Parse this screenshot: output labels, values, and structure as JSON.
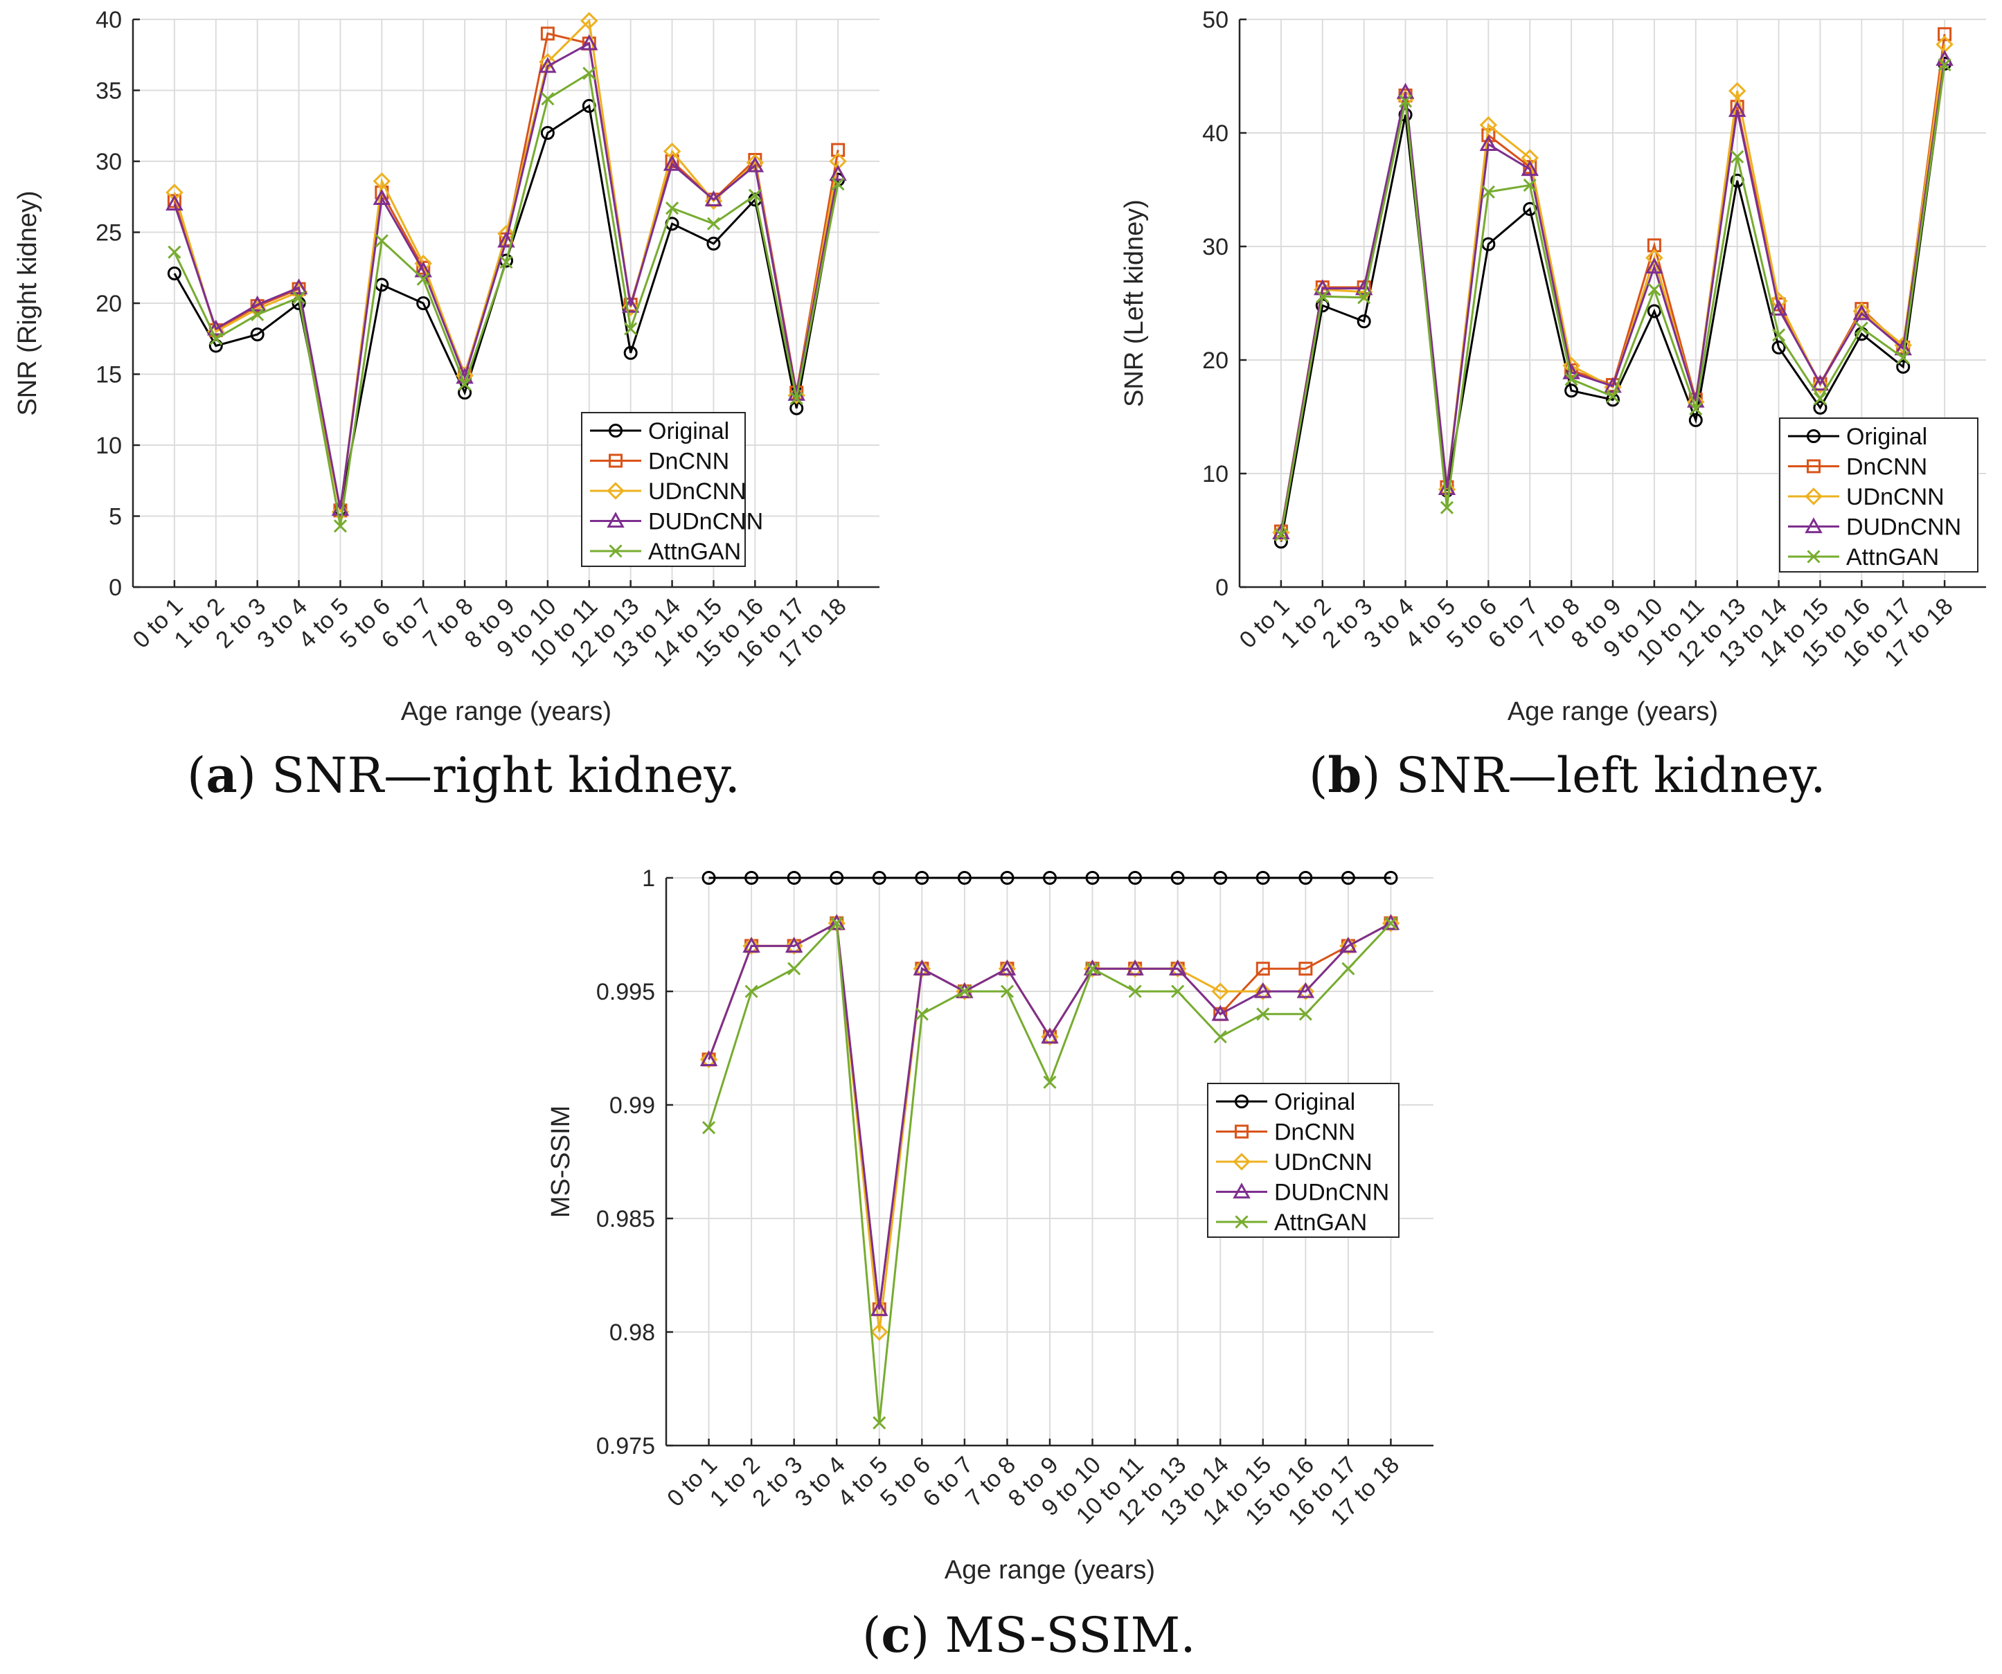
{
  "colors": {
    "Original": "#000000",
    "DnCNN": "#d95319",
    "UDnCNN": "#edb120",
    "DUDnCNN": "#7e2f8e",
    "AttnGAN": "#77ac30"
  },
  "markers": {
    "Original": "circle",
    "DnCNN": "square",
    "UDnCNN": "diamond",
    "DUDnCNN": "triangle",
    "AttnGAN": "x"
  },
  "captions": {
    "a": {
      "letter": "a",
      "text": " SNR—right kidney."
    },
    "b": {
      "letter": "b",
      "text": " SNR—left kidney."
    },
    "c": {
      "letter": "c",
      "text": " MS-SSIM."
    }
  },
  "chart_data": [
    {
      "id": "a",
      "type": "line",
      "xlabel": "Age range (years)",
      "ylabel": "SNR (Right kidney)",
      "ylim": [
        0,
        40
      ],
      "yticks": [
        "0",
        "5",
        "10",
        "15",
        "20",
        "25",
        "30",
        "35",
        "40"
      ],
      "ytick_values": [
        0,
        5,
        10,
        15,
        20,
        25,
        30,
        35,
        40
      ],
      "grid": true,
      "legend_position": "bottom-right",
      "categories": [
        "0 to 1",
        "1 to 2",
        "2 to 3",
        "3 to 4",
        "4 to 5",
        "5 to 6",
        "6 to 7",
        "7 to 8",
        "8 to 9",
        "9 to 10",
        "10 to 11",
        "12 to 13",
        "13 to 14",
        "14 to 15",
        "15 to 16",
        "16 to 17",
        "17 to 18"
      ],
      "series": [
        {
          "name": "Original",
          "values": [
            22.1,
            17.0,
            17.8,
            20.0,
            5.5,
            21.3,
            20.0,
            13.7,
            23.0,
            32.0,
            33.9,
            16.5,
            25.6,
            24.2,
            27.3,
            12.6,
            28.7
          ]
        },
        {
          "name": "DnCNN",
          "values": [
            27.2,
            18.1,
            19.8,
            21.0,
            5.4,
            27.8,
            22.5,
            15.0,
            24.5,
            39.0,
            38.3,
            19.9,
            30.0,
            27.3,
            30.1,
            13.7,
            30.8
          ]
        },
        {
          "name": "UDnCNN",
          "values": [
            27.8,
            18.0,
            19.6,
            20.8,
            5.3,
            28.6,
            22.8,
            14.9,
            24.9,
            37.0,
            39.9,
            19.7,
            30.7,
            27.2,
            29.9,
            13.5,
            30.0
          ]
        },
        {
          "name": "DUDnCNN",
          "values": [
            27.0,
            18.2,
            19.9,
            21.1,
            5.5,
            27.4,
            22.3,
            14.8,
            24.4,
            36.7,
            38.3,
            19.8,
            29.8,
            27.3,
            29.7,
            13.6,
            29.1
          ]
        },
        {
          "name": "AttnGAN",
          "values": [
            23.6,
            17.5,
            19.2,
            20.4,
            4.3,
            24.4,
            21.7,
            14.3,
            22.9,
            34.4,
            36.2,
            18.2,
            26.7,
            25.6,
            27.6,
            13.3,
            28.4
          ]
        }
      ]
    },
    {
      "id": "b",
      "type": "line",
      "xlabel": "Age range (years)",
      "ylabel": "SNR (Left kidney)",
      "ylim": [
        0,
        50
      ],
      "yticks": [
        "0",
        "10",
        "20",
        "30",
        "40",
        "50"
      ],
      "ytick_values": [
        0,
        10,
        20,
        30,
        40,
        50
      ],
      "grid": true,
      "legend_position": "bottom-right",
      "categories": [
        "0 to 1",
        "1 to 2",
        "2 to 3",
        "3 to 4",
        "4 to 5",
        "5 to 6",
        "6 to 7",
        "7 to 8",
        "8 to 9",
        "9 to 10",
        "10 to 11",
        "12 to 13",
        "13 to 14",
        "14 to 15",
        "15 to 16",
        "16 to 17",
        "17 to 18"
      ],
      "series": [
        {
          "name": "Original",
          "values": [
            4.0,
            24.8,
            23.4,
            41.6,
            8.5,
            30.2,
            33.3,
            17.3,
            16.5,
            24.3,
            14.7,
            35.8,
            21.1,
            15.8,
            22.3,
            19.4,
            46.1
          ]
        },
        {
          "name": "DnCNN",
          "values": [
            4.9,
            26.4,
            26.4,
            43.3,
            8.8,
            39.8,
            37.0,
            19.1,
            17.8,
            30.1,
            16.5,
            42.3,
            24.9,
            17.9,
            24.5,
            21.1,
            48.7
          ]
        },
        {
          "name": "UDnCNN",
          "values": [
            4.8,
            26.2,
            26.0,
            43.0,
            8.6,
            40.7,
            37.8,
            19.5,
            17.6,
            29.0,
            16.3,
            43.7,
            25.2,
            17.8,
            24.3,
            21.3,
            47.8
          ]
        },
        {
          "name": "DUDnCNN",
          "values": [
            4.8,
            26.3,
            26.3,
            43.6,
            8.7,
            39.0,
            36.8,
            18.9,
            17.7,
            28.2,
            16.4,
            42.0,
            24.5,
            17.9,
            24.1,
            21.0,
            46.5
          ]
        },
        {
          "name": "AttnGAN",
          "values": [
            4.6,
            25.6,
            25.5,
            42.8,
            7.0,
            34.8,
            35.4,
            18.3,
            16.8,
            26.2,
            15.7,
            37.9,
            22.2,
            16.6,
            22.8,
            20.2,
            46.0
          ]
        }
      ]
    },
    {
      "id": "c",
      "type": "line",
      "xlabel": "Age range (years)",
      "ylabel": "MS-SSIM",
      "ylim": [
        0.975,
        1.0
      ],
      "yticks": [
        "0.975",
        "0.98",
        "0.985",
        "0.99",
        "0.995",
        "1"
      ],
      "ytick_values": [
        0.975,
        0.98,
        0.985,
        0.99,
        0.995,
        1.0
      ],
      "grid": true,
      "legend_position": "middle-right",
      "categories": [
        "0 to 1",
        "1 to 2",
        "2 to 3",
        "3 to 4",
        "4 to 5",
        "5 to 6",
        "6 to 7",
        "7 to 8",
        "8 to 9",
        "9 to 10",
        "10 to 11",
        "12 to 13",
        "13 to 14",
        "14 to 15",
        "15 to 16",
        "16 to 17",
        "17 to 18"
      ],
      "series": [
        {
          "name": "Original",
          "values": [
            1,
            1,
            1,
            1,
            1,
            1,
            1,
            1,
            1,
            1,
            1,
            1,
            1,
            1,
            1,
            1,
            1
          ]
        },
        {
          "name": "DnCNN",
          "values": [
            0.992,
            0.997,
            0.997,
            0.998,
            0.981,
            0.996,
            0.995,
            0.996,
            0.993,
            0.996,
            0.996,
            0.996,
            0.994,
            0.996,
            0.996,
            0.997,
            0.998
          ]
        },
        {
          "name": "UDnCNN",
          "values": [
            0.992,
            0.997,
            0.997,
            0.998,
            0.98,
            0.996,
            0.995,
            0.996,
            0.993,
            0.996,
            0.996,
            0.996,
            0.995,
            0.995,
            0.995,
            0.997,
            0.998
          ]
        },
        {
          "name": "DUDnCNN",
          "values": [
            0.992,
            0.997,
            0.997,
            0.998,
            0.981,
            0.996,
            0.995,
            0.996,
            0.993,
            0.996,
            0.996,
            0.996,
            0.994,
            0.995,
            0.995,
            0.997,
            0.998
          ]
        },
        {
          "name": "AttnGAN",
          "values": [
            0.989,
            0.995,
            0.996,
            0.998,
            0.976,
            0.994,
            0.995,
            0.995,
            0.991,
            0.996,
            0.995,
            0.995,
            0.993,
            0.994,
            0.994,
            0.996,
            0.998
          ]
        }
      ]
    }
  ]
}
